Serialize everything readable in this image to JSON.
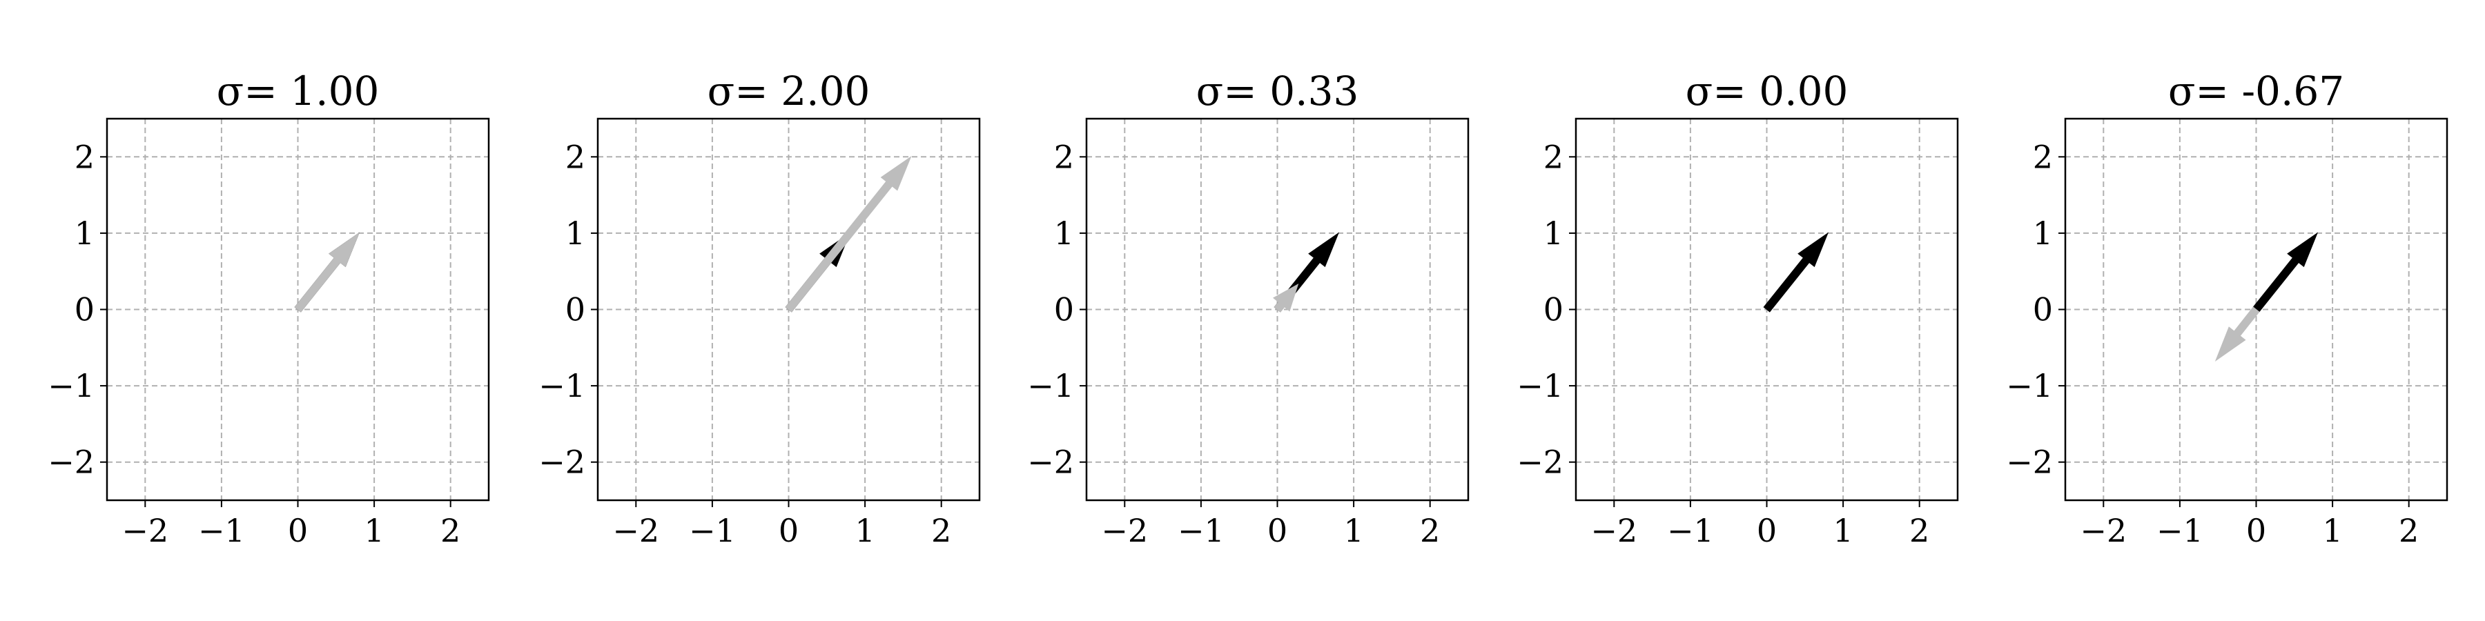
{
  "chart_data": [
    {
      "type": "vector",
      "title": "σ= 1.00",
      "xlim": [
        -2.5,
        2.5
      ],
      "ylim": [
        -2.5,
        2.5
      ],
      "xticks": [
        -2,
        -1,
        0,
        1,
        2
      ],
      "yticks": [
        -2,
        -1,
        0,
        1,
        2
      ],
      "xtick_labels": [
        "−2",
        "−1",
        "0",
        "1",
        "2"
      ],
      "ytick_labels": [
        "−2",
        "−1",
        "0",
        "1",
        "2"
      ],
      "grid": true,
      "series": [
        {
          "color": "#000000",
          "x": [
            0,
            0.8
          ],
          "y": [
            0,
            1.0
          ]
        },
        {
          "color": "#bdbdbd",
          "x": [
            0,
            0.8
          ],
          "y": [
            0,
            1.0
          ]
        }
      ]
    },
    {
      "type": "vector",
      "title": "σ= 2.00",
      "xlim": [
        -2.5,
        2.5
      ],
      "ylim": [
        -2.5,
        2.5
      ],
      "xticks": [
        -2,
        -1,
        0,
        1,
        2
      ],
      "yticks": [
        -2,
        -1,
        0,
        1,
        2
      ],
      "xtick_labels": [
        "−2",
        "−1",
        "0",
        "1",
        "2"
      ],
      "ytick_labels": [
        "−2",
        "−1",
        "0",
        "1",
        "2"
      ],
      "grid": true,
      "series": [
        {
          "color": "#000000",
          "x": [
            0,
            0.8
          ],
          "y": [
            0,
            1.0
          ]
        },
        {
          "color": "#bdbdbd",
          "x": [
            0,
            1.6
          ],
          "y": [
            0,
            2.0
          ]
        }
      ]
    },
    {
      "type": "vector",
      "title": "σ= 0.33",
      "xlim": [
        -2.5,
        2.5
      ],
      "ylim": [
        -2.5,
        2.5
      ],
      "xticks": [
        -2,
        -1,
        0,
        1,
        2
      ],
      "yticks": [
        -2,
        -1,
        0,
        1,
        2
      ],
      "xtick_labels": [
        "−2",
        "−1",
        "0",
        "1",
        "2"
      ],
      "ytick_labels": [
        "−2",
        "−1",
        "0",
        "1",
        "2"
      ],
      "grid": true,
      "series": [
        {
          "color": "#000000",
          "x": [
            0,
            0.8
          ],
          "y": [
            0,
            1.0
          ]
        },
        {
          "color": "#bdbdbd",
          "x": [
            0,
            0.27
          ],
          "y": [
            0,
            0.33
          ]
        }
      ]
    },
    {
      "type": "vector",
      "title": "σ= 0.00",
      "xlim": [
        -2.5,
        2.5
      ],
      "ylim": [
        -2.5,
        2.5
      ],
      "xticks": [
        -2,
        -1,
        0,
        1,
        2
      ],
      "yticks": [
        -2,
        -1,
        0,
        1,
        2
      ],
      "xtick_labels": [
        "−2",
        "−1",
        "0",
        "1",
        "2"
      ],
      "ytick_labels": [
        "−2",
        "−1",
        "0",
        "1",
        "2"
      ],
      "grid": true,
      "series": [
        {
          "color": "#000000",
          "x": [
            0,
            0.8
          ],
          "y": [
            0,
            1.0
          ]
        }
      ]
    },
    {
      "type": "vector",
      "title": "σ= -0.67",
      "xlim": [
        -2.5,
        2.5
      ],
      "ylim": [
        -2.5,
        2.5
      ],
      "xticks": [
        -2,
        -1,
        0,
        1,
        2
      ],
      "yticks": [
        -2,
        -1,
        0,
        1,
        2
      ],
      "xtick_labels": [
        "−2",
        "−1",
        "0",
        "1",
        "2"
      ],
      "ytick_labels": [
        "−2",
        "−1",
        "0",
        "1",
        "2"
      ],
      "grid": true,
      "series": [
        {
          "color": "#000000",
          "x": [
            0,
            0.8
          ],
          "y": [
            0,
            1.0
          ]
        },
        {
          "color": "#bdbdbd",
          "x": [
            0,
            -0.53
          ],
          "y": [
            0,
            -0.67
          ]
        }
      ]
    }
  ]
}
